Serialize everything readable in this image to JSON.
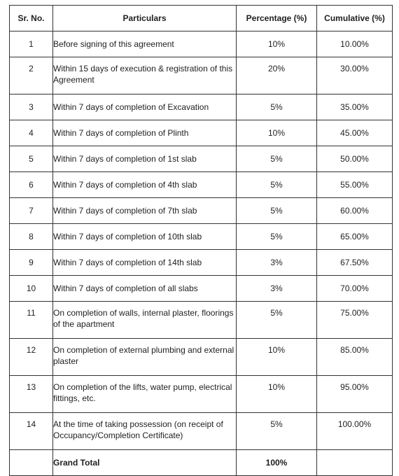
{
  "headers": [
    "Sr. No.",
    "Particulars",
    "Percentage (%)",
    "Cumulative (%)"
  ],
  "rows": [
    {
      "sr": "1",
      "particulars": "Before signing of this agreement",
      "percentage": "10%",
      "cumulative": "10.00%",
      "tall": false
    },
    {
      "sr": "2",
      "particulars": "Within 15 days of execution & registration of this Agreement",
      "percentage": "20%",
      "cumulative": "30.00%",
      "tall": true
    },
    {
      "sr": "3",
      "particulars": "Within 7 days of completion of Excavation",
      "percentage": "5%",
      "cumulative": "35.00%",
      "tall": false
    },
    {
      "sr": "4",
      "particulars": "Within 7 days of completion of Plinth",
      "percentage": "10%",
      "cumulative": "45.00%",
      "tall": false
    },
    {
      "sr": "5",
      "particulars": "Within 7 days of completion of 1st slab",
      "percentage": "5%",
      "cumulative": "50.00%",
      "tall": false
    },
    {
      "sr": "6",
      "particulars": "Within 7 days of completion of 4th slab",
      "percentage": "5%",
      "cumulative": "55.00%",
      "tall": false
    },
    {
      "sr": "7",
      "particulars": "Within 7 days of completion of 7th slab",
      "percentage": "5%",
      "cumulative": "60.00%",
      "tall": false
    },
    {
      "sr": "8",
      "particulars": "Within 7 days of completion of 10th slab",
      "percentage": "5%",
      "cumulative": "65.00%",
      "tall": false
    },
    {
      "sr": "9",
      "particulars": "Within 7 days of completion of 14th slab",
      "percentage": "3%",
      "cumulative": "67.50%",
      "tall": false
    },
    {
      "sr": "10",
      "particulars": "Within 7 days of completion of all slabs",
      "percentage": "3%",
      "cumulative": "70.00%",
      "tall": false
    },
    {
      "sr": "11",
      "particulars": "On completion of walls, internal plaster, floorings of the apartment",
      "percentage": "5%",
      "cumulative": "75.00%",
      "tall": true
    },
    {
      "sr": "12",
      "particulars": "On completion of external plumbing and external plaster",
      "percentage": "10%",
      "cumulative": "85.00%",
      "tall": true
    },
    {
      "sr": "13",
      "particulars": "On completion of the lifts, water pump, electrical fittings, etc.",
      "percentage": "10%",
      "cumulative": "95.00%",
      "tall": true
    },
    {
      "sr": "14",
      "particulars": "At the time of taking possession (on receipt of Occupancy/Completion Certificate)",
      "percentage": "5%",
      "cumulative": "100.00%",
      "tall": true
    }
  ],
  "total": {
    "sr": "",
    "particulars": "Grand Total",
    "percentage": "100%",
    "cumulative": ""
  }
}
